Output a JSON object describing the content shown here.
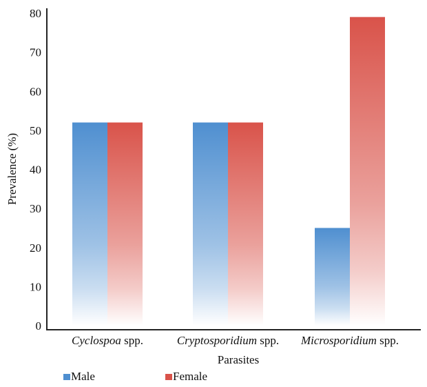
{
  "chart_data": {
    "type": "bar",
    "categories": [
      {
        "italic": "Cyclospoa",
        "rest": " spp."
      },
      {
        "italic": "Cryptosporidium",
        "rest": " spp."
      },
      {
        "italic": "Microsporidium",
        "rest": " spp."
      }
    ],
    "series": [
      {
        "name": "Male",
        "values": [
          52,
          52,
          25
        ],
        "color": "#4f8fd0"
      },
      {
        "name": "Female",
        "values": [
          52,
          52,
          79
        ],
        "color": "#d9534a"
      }
    ],
    "xlabel": "Parasites",
    "ylabel": "Prevalence (%)",
    "ylim": [
      0,
      80
    ],
    "yticks": [
      0,
      10,
      20,
      30,
      40,
      50,
      60,
      70,
      80
    ],
    "grid": false,
    "legend_position": "bottom-left"
  }
}
